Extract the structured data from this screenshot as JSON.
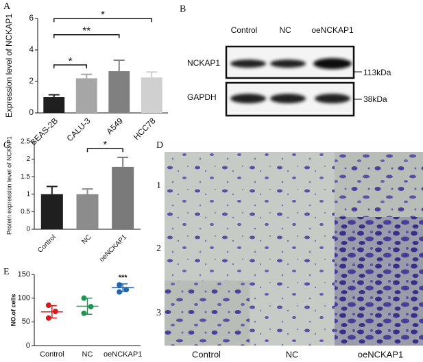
{
  "chart_data": [
    {
      "type": "bar",
      "panel_label": "A",
      "y_label": "Expression level of NCKAP1",
      "categories": [
        "BEAS-2B",
        "CALU-3",
        "A549",
        "HCC78"
      ],
      "values": [
        1.0,
        2.2,
        2.65,
        2.25
      ],
      "errors": [
        0.15,
        0.25,
        0.7,
        0.35
      ],
      "colors": [
        "#1f1f1f",
        "#a6a6a6",
        "#808080",
        "#d0d0d0"
      ],
      "ylim": [
        0,
        6
      ],
      "yticks": [
        0,
        2,
        4,
        6
      ],
      "significance": [
        {
          "between": [
            "BEAS-2B",
            "CALU-3"
          ],
          "label": "*"
        },
        {
          "between": [
            "BEAS-2B",
            "A549"
          ],
          "label": "**"
        },
        {
          "between": [
            "BEAS-2B",
            "HCC78"
          ],
          "label": "*"
        }
      ]
    },
    {
      "type": "bar",
      "panel_label": "C",
      "y_label": "Protein expression level of NCKAP1",
      "categories": [
        "Control",
        "NC",
        "oeNCKAP1"
      ],
      "values": [
        1.0,
        1.0,
        1.78
      ],
      "errors": [
        0.22,
        0.15,
        0.27
      ],
      "colors": [
        "#1f1f1f",
        "#8c8c8c",
        "#7a7a7a"
      ],
      "ylim": [
        0,
        2.5
      ],
      "yticks": [
        0,
        0.5,
        1.0,
        1.5,
        2.0,
        2.5
      ],
      "significance": [
        {
          "between": [
            "NC",
            "oeNCKAP1"
          ],
          "label": "*"
        }
      ]
    },
    {
      "type": "dot",
      "panel_label": "E",
      "y_label": "NO.of cells",
      "categories": [
        "Control",
        "NC",
        "oeNCKAP1"
      ],
      "groups": [
        {
          "color": "#d7191c",
          "points": [
            85,
            72,
            58
          ],
          "mean": 71,
          "sd": 13
        },
        {
          "color": "#1a9850",
          "points": [
            100,
            82,
            68
          ],
          "mean": 83,
          "sd": 17
        },
        {
          "color": "#2166ac",
          "points": [
            128,
            118,
            113
          ],
          "mean": 122,
          "sd": 8
        }
      ],
      "ylim": [
        0,
        150
      ],
      "yticks": [
        0,
        50,
        100,
        150
      ],
      "annotations": [
        {
          "category": "oeNCKAP1",
          "label": "***"
        }
      ]
    }
  ],
  "blot": {
    "panel_label": "B",
    "lanes": [
      "Control",
      "NC",
      "oeNCKAP1"
    ],
    "bands": [
      {
        "name": "NCKAP1",
        "size": "113kDa"
      },
      {
        "name": "GAPDH",
        "size": "38kDa"
      }
    ]
  },
  "micrographs": {
    "panel_label": "D",
    "rows": [
      "1",
      "2",
      "3"
    ],
    "columns": [
      "Control",
      "NC",
      "oeNCKAP1"
    ]
  }
}
